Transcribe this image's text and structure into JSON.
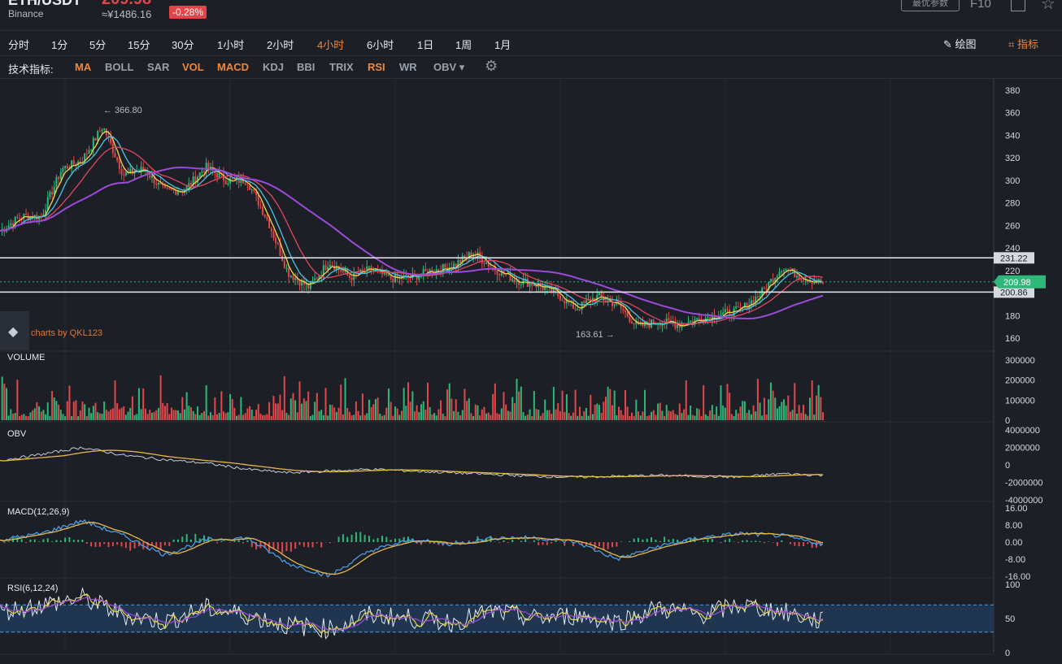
{
  "header": {
    "symbol": "ETH/USDT",
    "exchange": "Binance",
    "price": "209.98",
    "cny_price": "≈¥1486.16",
    "change": "-0.28%",
    "param_button": "最优参数",
    "f10": "F10"
  },
  "timeframes": [
    "分时",
    "1分",
    "5分",
    "15分",
    "30分",
    "1小时",
    "2小时",
    "4小时",
    "6小时",
    "1日",
    "1周",
    "1月"
  ],
  "active_timeframe": "4小时",
  "toolbar": {
    "draw": "绘图",
    "indicators": "指标"
  },
  "indicator_bar": {
    "label": "技术指标:",
    "items": [
      {
        "name": "MA",
        "active": true
      },
      {
        "name": "BOLL",
        "active": false
      },
      {
        "name": "SAR",
        "active": false
      },
      {
        "name": "VOL",
        "active": true
      },
      {
        "name": "MACD",
        "active": true
      },
      {
        "name": "KDJ",
        "active": false
      },
      {
        "name": "BBI",
        "active": false
      },
      {
        "name": "TRIX",
        "active": false
      },
      {
        "name": "RSI",
        "active": true
      },
      {
        "name": "WR",
        "active": false
      },
      {
        "name": "OBV ▾",
        "active": false
      }
    ]
  },
  "watermark": "charts by QKL123",
  "colors": {
    "up": "#2db87a",
    "down": "#e0484b",
    "accent": "#f0873a",
    "ma_fast": "#f2d64b",
    "ma_mid": "#4cc3e6",
    "ma_slow": "#e04860",
    "ma_long": "#9b4bd8"
  },
  "chart_data": [
    {
      "type": "line",
      "panel": "price",
      "title": "",
      "ylim": [
        150,
        390
      ],
      "yticks": [
        160,
        180,
        200,
        220,
        240,
        260,
        280,
        300,
        320,
        340,
        360,
        380
      ],
      "annotations": {
        "high": "366.80",
        "low": "163.61",
        "last": "209.98",
        "upper_line": "231.22",
        "lower_line": "200.86"
      },
      "levels": {
        "upper": 231.22,
        "lower": 200.86,
        "last": 209.98
      },
      "x": [
        0,
        5,
        10,
        15,
        20,
        25,
        30,
        35,
        40,
        45,
        50,
        55,
        60,
        65,
        70,
        75,
        80,
        85,
        90,
        95,
        100
      ],
      "series": [
        {
          "values": [
            255,
            268,
            268,
            310,
            318,
            348,
            305,
            310,
            290,
            292,
            312,
            300,
            300,
            265,
            218,
            205,
            228,
            214,
            221,
            213,
            214
          ]
        },
        {
          "values": [
            213,
            220,
            224,
            236,
            222,
            212,
            208,
            200,
            186,
            197,
            190,
            170,
            175,
            172,
            177,
            181,
            185,
            200,
            223,
            214,
            209
          ]
        }
      ]
    },
    {
      "type": "bar",
      "panel": "volume",
      "title": "VOLUME",
      "ylim": [
        0,
        300000
      ],
      "yticks": [
        0,
        100000,
        200000,
        300000
      ]
    },
    {
      "type": "line",
      "panel": "obv",
      "title": "OBV",
      "ylim": [
        -4000000,
        4000000
      ],
      "yticks": [
        -4000000,
        -2000000,
        0,
        2000000,
        4000000
      ],
      "obv": [
        500000,
        1200000,
        2000000,
        1100000,
        600000,
        200000,
        -500000,
        -900000,
        -700000,
        -500000,
        -700000,
        -900000,
        -1100000,
        -1300000,
        -1400000,
        -1300000,
        -1200000,
        -1300000,
        -1400000,
        -1000000,
        -1200000
      ]
    },
    {
      "type": "bar",
      "panel": "macd",
      "title": "MACD(12,26,9)",
      "ylim": [
        -16,
        16
      ],
      "yticks": [
        "16.00",
        "8.00",
        "0.00",
        "-8.00",
        "-16.00"
      ],
      "dif": [
        1,
        4,
        10,
        3,
        -6,
        1,
        2,
        -10,
        -16,
        -4,
        1,
        -1,
        2,
        2,
        0,
        -8,
        -2,
        2,
        4,
        3,
        -1
      ]
    },
    {
      "type": "line",
      "panel": "rsi",
      "title": "RSI(6,12,24)",
      "ylim": [
        0,
        100
      ],
      "yticks": [
        0,
        50,
        100
      ],
      "bands": [
        30,
        70
      ],
      "rsi": [
        60,
        70,
        80,
        55,
        45,
        65,
        55,
        40,
        35,
        55,
        50,
        45,
        60,
        50,
        55,
        45,
        65,
        55,
        70,
        60,
        45
      ]
    }
  ]
}
